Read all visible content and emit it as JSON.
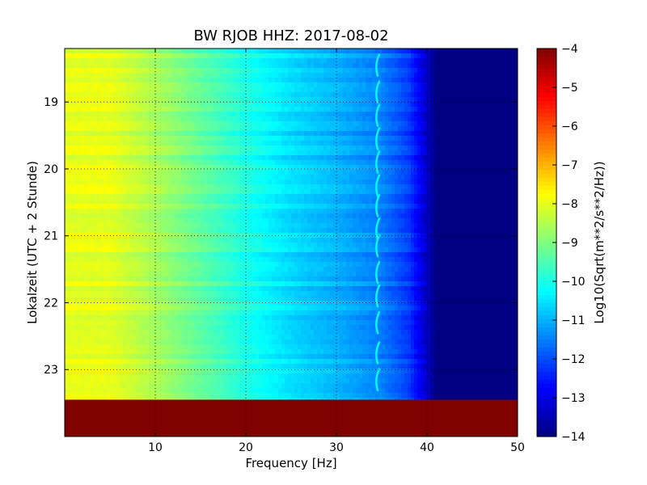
{
  "chart_data": {
    "type": "heatmap",
    "title": "BW RJOB HHZ: 2017-08-02",
    "xlabel": "Frequency [Hz]",
    "ylabel": "Lokalzeit (UTC + 2 Stunde)",
    "xlim": [
      0,
      50
    ],
    "ylim_hours": [
      18.2,
      24.0
    ],
    "x_ticks": [
      10,
      20,
      30,
      40,
      50
    ],
    "x_tick_labels": [
      "10",
      "20",
      "30",
      "40",
      "50"
    ],
    "y_ticks": [
      19,
      20,
      21,
      22,
      23
    ],
    "y_tick_labels": [
      "19",
      "20",
      "21",
      "22",
      "23"
    ],
    "colorbar": {
      "label": "Log10(Sqrt(m**2/s**2/Hz))",
      "range": [
        -14,
        -4
      ],
      "ticks": [
        -4,
        -5,
        -6,
        -7,
        -8,
        -9,
        -10,
        -11,
        -12,
        -13,
        -14
      ],
      "tick_labels": [
        "−4",
        "−5",
        "−6",
        "−7",
        "−8",
        "−9",
        "−10",
        "−11",
        "−12",
        "−13",
        "−14"
      ],
      "colormap": "jet"
    },
    "grid": true,
    "data_end_hour": 23.45,
    "no_data_value": -4,
    "spectral_profile": {
      "frequency_hz": [
        0,
        5,
        10,
        15,
        20,
        25,
        30,
        35,
        38,
        40,
        41,
        50
      ],
      "log_amplitude": [
        -8.0,
        -8.0,
        -8.6,
        -9.3,
        -10.0,
        -10.6,
        -11.0,
        -11.5,
        -12.2,
        -13.3,
        -14.0,
        -14.0
      ]
    },
    "tonal_line": {
      "frequency_hz": 34.5,
      "log_amplitude": -10.3,
      "burst_hours": [
        18.45,
        18.85,
        19.2,
        19.55,
        19.9,
        20.25,
        20.55,
        20.9,
        21.15,
        21.55,
        21.9,
        22.3,
        22.75,
        23.15
      ]
    }
  }
}
